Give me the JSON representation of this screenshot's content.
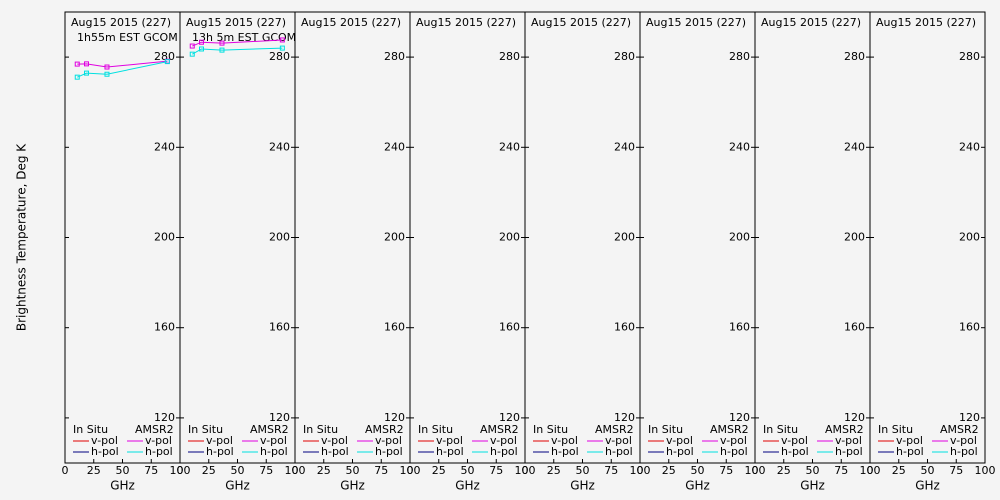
{
  "chart_data": [
    {
      "type": "line",
      "title": "Aug15 2015 (227)",
      "subtitle": "1h55m EST GCOM",
      "y_label": "Brightness Temperature, Deg K",
      "x_label": "GHz",
      "x": [
        10.65,
        18.7,
        36.5,
        89
      ],
      "series": [
        {
          "group": "In Situ",
          "name": "v-pol",
          "color": "#e00000",
          "values": [
            null,
            null,
            null,
            null
          ]
        },
        {
          "group": "In Situ",
          "name": "h-pol",
          "color": "#000080",
          "values": [
            null,
            null,
            null,
            null
          ]
        },
        {
          "group": "AMSR2",
          "name": "v-pol",
          "color": "#e000e0",
          "values": [
            276.9,
            277,
            275.6,
            278.2
          ]
        },
        {
          "group": "AMSR2",
          "name": "h-pol",
          "color": "#00e0e0",
          "values": [
            271.1,
            272.9,
            272.4,
            278
          ]
        }
      ],
      "xlim": [
        0,
        100
      ],
      "xticks": [
        0,
        25,
        50,
        75,
        100
      ],
      "ylim": [
        100,
        300
      ],
      "yticks": [
        120,
        160,
        200,
        240,
        280
      ]
    },
    {
      "type": "line",
      "title": "Aug15 2015 (227)",
      "subtitle": "13h 5m EST GCOM",
      "x_label": "GHz",
      "x": [
        10.65,
        18.7,
        36.5,
        89
      ],
      "series": [
        {
          "group": "In Situ",
          "name": "v-pol",
          "color": "#e00000",
          "values": [
            null,
            null,
            null,
            null
          ]
        },
        {
          "group": "In Situ",
          "name": "h-pol",
          "color": "#000080",
          "values": [
            null,
            null,
            null,
            null
          ]
        },
        {
          "group": "AMSR2",
          "name": "v-pol",
          "color": "#e000e0",
          "values": [
            284.9,
            286.6,
            286.2,
            287.6
          ]
        },
        {
          "group": "AMSR2",
          "name": "h-pol",
          "color": "#00e0e0",
          "values": [
            281.3,
            283.6,
            283.1,
            284
          ]
        }
      ],
      "xlim": [
        0,
        100
      ],
      "xticks": [
        0,
        25,
        50,
        75,
        100
      ],
      "ylim": [
        100,
        300
      ],
      "yticks": [
        120,
        160,
        200,
        240,
        280
      ]
    },
    {
      "type": "line",
      "title": "Aug15 2015 (227)",
      "x_label": "GHz",
      "x": [],
      "series": [
        {
          "group": "In Situ",
          "name": "v-pol",
          "color": "#e00000",
          "values": []
        },
        {
          "group": "In Situ",
          "name": "h-pol",
          "color": "#000080",
          "values": []
        },
        {
          "group": "AMSR2",
          "name": "v-pol",
          "color": "#e000e0",
          "values": []
        },
        {
          "group": "AMSR2",
          "name": "h-pol",
          "color": "#00e0e0",
          "values": []
        }
      ],
      "xlim": [
        0,
        100
      ],
      "xticks": [
        0,
        25,
        50,
        75,
        100
      ],
      "ylim": [
        100,
        300
      ],
      "yticks": [
        120,
        160,
        200,
        240,
        280
      ]
    },
    {
      "type": "line",
      "title": "Aug15 2015 (227)",
      "x_label": "GHz",
      "x": [],
      "series": [
        {
          "group": "In Situ",
          "name": "v-pol",
          "color": "#e00000",
          "values": []
        },
        {
          "group": "In Situ",
          "name": "h-pol",
          "color": "#000080",
          "values": []
        },
        {
          "group": "AMSR2",
          "name": "v-pol",
          "color": "#e000e0",
          "values": []
        },
        {
          "group": "AMSR2",
          "name": "h-pol",
          "color": "#00e0e0",
          "values": []
        }
      ],
      "xlim": [
        0,
        100
      ],
      "xticks": [
        0,
        25,
        50,
        75,
        100
      ],
      "ylim": [
        100,
        300
      ],
      "yticks": [
        120,
        160,
        200,
        240,
        280
      ]
    },
    {
      "type": "line",
      "title": "Aug15 2015 (227)",
      "x_label": "GHz",
      "x": [],
      "series": [
        {
          "group": "In Situ",
          "name": "v-pol",
          "color": "#e00000",
          "values": []
        },
        {
          "group": "In Situ",
          "name": "h-pol",
          "color": "#000080",
          "values": []
        },
        {
          "group": "AMSR2",
          "name": "v-pol",
          "color": "#e000e0",
          "values": []
        },
        {
          "group": "AMSR2",
          "name": "h-pol",
          "color": "#00e0e0",
          "values": []
        }
      ],
      "xlim": [
        0,
        100
      ],
      "xticks": [
        0,
        25,
        50,
        75,
        100
      ],
      "ylim": [
        100,
        300
      ],
      "yticks": [
        120,
        160,
        200,
        240,
        280
      ]
    },
    {
      "type": "line",
      "title": "Aug15 2015 (227)",
      "x_label": "GHz",
      "x": [],
      "series": [
        {
          "group": "In Situ",
          "name": "v-pol",
          "color": "#e00000",
          "values": []
        },
        {
          "group": "In Situ",
          "name": "h-pol",
          "color": "#000080",
          "values": []
        },
        {
          "group": "AMSR2",
          "name": "v-pol",
          "color": "#e000e0",
          "values": []
        },
        {
          "group": "AMSR2",
          "name": "h-pol",
          "color": "#00e0e0",
          "values": []
        }
      ],
      "xlim": [
        0,
        100
      ],
      "xticks": [
        0,
        25,
        50,
        75,
        100
      ],
      "ylim": [
        100,
        300
      ],
      "yticks": [
        120,
        160,
        200,
        240,
        280
      ]
    },
    {
      "type": "line",
      "title": "Aug15 2015 (227)",
      "x_label": "GHz",
      "x": [],
      "series": [
        {
          "group": "In Situ",
          "name": "v-pol",
          "color": "#e00000",
          "values": []
        },
        {
          "group": "In Situ",
          "name": "h-pol",
          "color": "#000080",
          "values": []
        },
        {
          "group": "AMSR2",
          "name": "v-pol",
          "color": "#e000e0",
          "values": []
        },
        {
          "group": "AMSR2",
          "name": "h-pol",
          "color": "#00e0e0",
          "values": []
        }
      ],
      "xlim": [
        0,
        100
      ],
      "xticks": [
        0,
        25,
        50,
        75,
        100
      ],
      "ylim": [
        100,
        300
      ],
      "yticks": [
        120,
        160,
        200,
        240,
        280
      ]
    },
    {
      "type": "line",
      "title": "Aug15 2015 (227)",
      "x_label": "GHz",
      "x": [],
      "series": [
        {
          "group": "In Situ",
          "name": "v-pol",
          "color": "#e00000",
          "values": []
        },
        {
          "group": "In Situ",
          "name": "h-pol",
          "color": "#000080",
          "values": []
        },
        {
          "group": "AMSR2",
          "name": "v-pol",
          "color": "#e000e0",
          "values": []
        },
        {
          "group": "AMSR2",
          "name": "h-pol",
          "color": "#00e0e0",
          "values": []
        }
      ],
      "xlim": [
        0,
        100
      ],
      "xticks": [
        0,
        25,
        50,
        75,
        100
      ],
      "ylim": [
        100,
        300
      ],
      "yticks": [
        120,
        160,
        200,
        240,
        280
      ]
    }
  ]
}
